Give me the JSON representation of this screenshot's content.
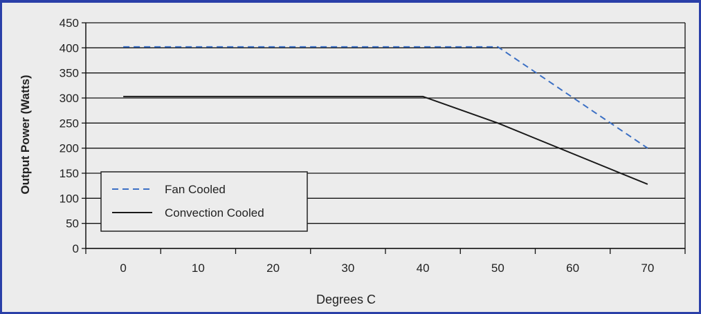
{
  "chart_data": {
    "type": "line",
    "title": "",
    "xlabel": "Degrees C",
    "ylabel": "Output Power (Watts)",
    "xlim": [
      -5,
      75
    ],
    "ylim": [
      0,
      450
    ],
    "x_ticks": [
      0,
      10,
      20,
      30,
      40,
      50,
      60,
      70
    ],
    "y_ticks": [
      0,
      50,
      100,
      150,
      200,
      250,
      300,
      350,
      400,
      450
    ],
    "grid": "horizontal",
    "legend_placement": "bottom-left",
    "series": [
      {
        "name": "Fan Cooled",
        "style": "dashed",
        "color": "#3b6fc4",
        "x": [
          0,
          50,
          70
        ],
        "y": [
          402,
          402,
          200
        ]
      },
      {
        "name": "Convection Cooled",
        "style": "solid",
        "color": "#1a1a1a",
        "x": [
          0,
          40,
          50,
          70
        ],
        "y": [
          303,
          303,
          250,
          128
        ]
      }
    ]
  }
}
